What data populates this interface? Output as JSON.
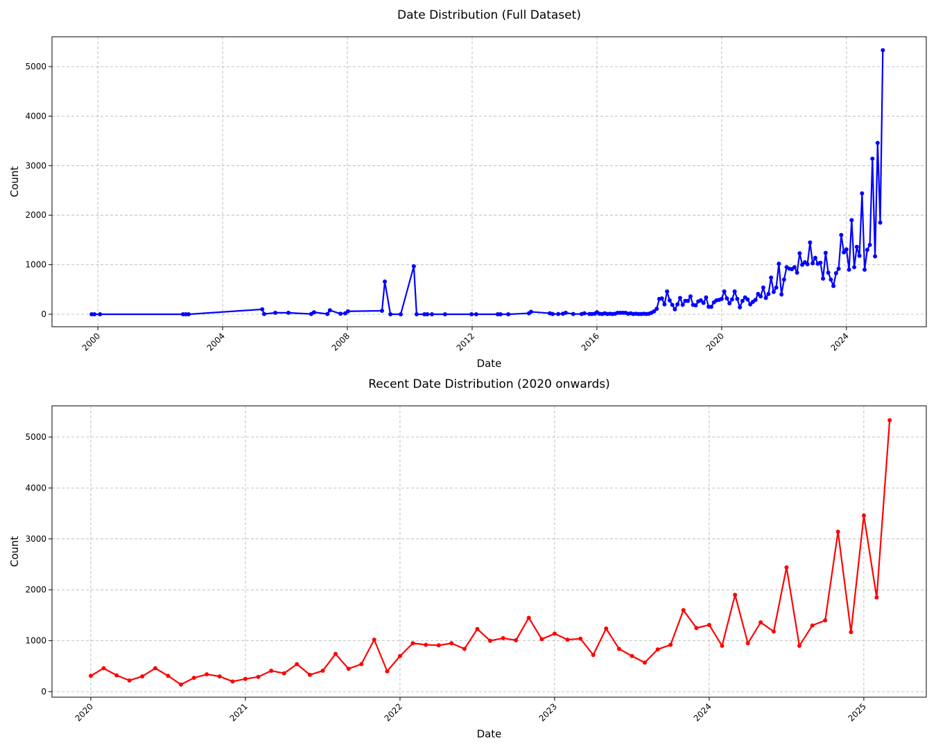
{
  "chart_data": [
    {
      "type": "line",
      "title": "Date Distribution (Full Dataset)",
      "xlabel": "Date",
      "ylabel": "Count",
      "color": "#0000ff",
      "grid": true,
      "xlim": [
        1998.53,
        2026.56
      ],
      "xticks": [
        2000,
        2004,
        2008,
        2012,
        2016,
        2020,
        2024
      ],
      "ylim": [
        -252,
        5602
      ],
      "yticks": [
        0,
        1000,
        2000,
        3000,
        4000,
        5000
      ],
      "x": [
        1999.8,
        1999.89,
        2000.07,
        2002.73,
        2002.82,
        2002.91,
        2005.27,
        2005.33,
        2005.69,
        2006.11,
        2006.84,
        2006.93,
        2007.36,
        2007.44,
        2007.78,
        2007.93,
        2008.02,
        2009.11,
        2009.2,
        2009.38,
        2009.71,
        2010.13,
        2010.22,
        2010.47,
        2010.56,
        2010.71,
        2011.13,
        2011.98,
        2012.13,
        2012.82,
        2012.91,
        2013.16,
        2013.82,
        2013.89,
        2014.49,
        2014.58,
        2014.76,
        2014.91,
        2015.0,
        2015.24,
        2015.51,
        2015.6,
        2015.76,
        2015.84,
        2015.93,
        2016.0,
        2016.083,
        2016.167,
        2016.25,
        2016.333,
        2016.417,
        2016.5,
        2016.583,
        2016.667,
        2016.75,
        2016.833,
        2016.917,
        2017.0,
        2017.083,
        2017.167,
        2017.25,
        2017.333,
        2017.417,
        2017.5,
        2017.583,
        2017.667,
        2017.75,
        2017.833,
        2017.917,
        2018.0,
        2018.083,
        2018.167,
        2018.25,
        2018.333,
        2018.417,
        2018.5,
        2018.583,
        2018.667,
        2018.75,
        2018.833,
        2018.917,
        2019.0,
        2019.083,
        2019.167,
        2019.25,
        2019.333,
        2019.417,
        2019.5,
        2019.583,
        2019.667,
        2019.75,
        2019.833,
        2019.917,
        2020.0,
        2020.083,
        2020.167,
        2020.25,
        2020.333,
        2020.417,
        2020.5,
        2020.583,
        2020.667,
        2020.75,
        2020.833,
        2020.917,
        2021.0,
        2021.083,
        2021.167,
        2021.25,
        2021.333,
        2021.417,
        2021.5,
        2021.583,
        2021.667,
        2021.75,
        2021.833,
        2021.917,
        2022.0,
        2022.083,
        2022.167,
        2022.25,
        2022.333,
        2022.417,
        2022.5,
        2022.583,
        2022.667,
        2022.75,
        2022.833,
        2022.917,
        2023.0,
        2023.083,
        2023.167,
        2023.25,
        2023.333,
        2023.417,
        2023.5,
        2023.583,
        2023.667,
        2023.75,
        2023.833,
        2023.917,
        2024.0,
        2024.083,
        2024.167,
        2024.25,
        2024.333,
        2024.417,
        2024.5,
        2024.583,
        2024.667,
        2024.75,
        2024.833,
        2024.917,
        2025.0,
        2025.083,
        2025.167
      ],
      "values": [
        0,
        0,
        0,
        0,
        0,
        0,
        100,
        5,
        30,
        30,
        5,
        40,
        5,
        80,
        10,
        20,
        60,
        70,
        660,
        0,
        0,
        970,
        0,
        0,
        0,
        0,
        0,
        0,
        0,
        0,
        0,
        0,
        20,
        50,
        20,
        5,
        5,
        10,
        30,
        5,
        5,
        20,
        5,
        5,
        10,
        40,
        10,
        5,
        20,
        5,
        10,
        5,
        10,
        30,
        30,
        30,
        30,
        10,
        20,
        5,
        10,
        5,
        5,
        10,
        5,
        10,
        30,
        60,
        110,
        310,
        320,
        200,
        460,
        280,
        190,
        100,
        200,
        330,
        190,
        270,
        270,
        360,
        190,
        180,
        260,
        280,
        230,
        340,
        150,
        150,
        240,
        280,
        290,
        310,
        460,
        320,
        220,
        300,
        460,
        310,
        140,
        270,
        340,
        300,
        200,
        250,
        290,
        410,
        360,
        540,
        330,
        410,
        740,
        450,
        540,
        1020,
        400,
        700,
        950,
        920,
        910,
        950,
        840,
        1230,
        1000,
        1050,
        1010,
        1450,
        1030,
        1140,
        1020,
        1040,
        720,
        1240,
        840,
        700,
        570,
        830,
        920,
        1600,
        1250,
        1310,
        900,
        1900,
        950,
        1360,
        1180,
        2440,
        900,
        1300,
        1400,
        3140,
        1170,
        3460,
        1850,
        5330
      ]
    },
    {
      "type": "line",
      "title": "Recent Date Distribution (2020 onwards)",
      "xlabel": "Date",
      "ylabel": "Count",
      "color": "#ff0000",
      "grid": true,
      "xlim": [
        2019.749,
        2025.404
      ],
      "xticks": [
        2020,
        2021,
        2022,
        2023,
        2024,
        2025
      ],
      "ylim": [
        -109,
        5613
      ],
      "yticks": [
        0,
        1000,
        2000,
        3000,
        4000,
        5000
      ],
      "x": [
        2020.0,
        2020.083,
        2020.167,
        2020.25,
        2020.333,
        2020.417,
        2020.5,
        2020.583,
        2020.667,
        2020.75,
        2020.833,
        2020.917,
        2021.0,
        2021.083,
        2021.167,
        2021.25,
        2021.333,
        2021.417,
        2021.5,
        2021.583,
        2021.667,
        2021.75,
        2021.833,
        2021.917,
        2022.0,
        2022.083,
        2022.167,
        2022.25,
        2022.333,
        2022.417,
        2022.5,
        2022.583,
        2022.667,
        2022.75,
        2022.833,
        2022.917,
        2023.0,
        2023.083,
        2023.167,
        2023.25,
        2023.333,
        2023.417,
        2023.5,
        2023.583,
        2023.667,
        2023.75,
        2023.833,
        2023.917,
        2024.0,
        2024.083,
        2024.167,
        2024.25,
        2024.333,
        2024.417,
        2024.5,
        2024.583,
        2024.667,
        2024.75,
        2024.833,
        2024.917,
        2025.0,
        2025.083,
        2025.167
      ],
      "values": [
        310,
        460,
        320,
        220,
        300,
        460,
        310,
        140,
        270,
        340,
        300,
        200,
        250,
        290,
        410,
        360,
        540,
        330,
        410,
        740,
        450,
        540,
        1020,
        400,
        700,
        950,
        920,
        910,
        950,
        840,
        1230,
        1000,
        1050,
        1010,
        1450,
        1030,
        1140,
        1020,
        1040,
        720,
        1240,
        840,
        700,
        570,
        830,
        920,
        1600,
        1250,
        1310,
        900,
        1900,
        950,
        1360,
        1180,
        2440,
        900,
        1300,
        1400,
        3140,
        1170,
        3460,
        1850,
        5330
      ]
    }
  ]
}
